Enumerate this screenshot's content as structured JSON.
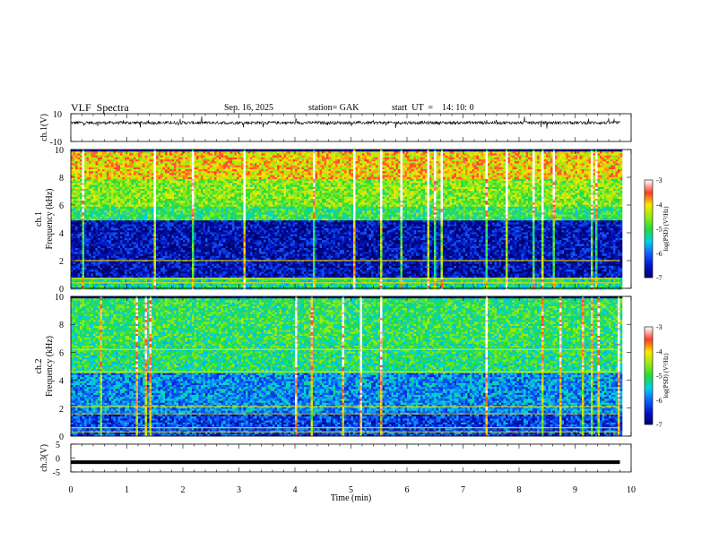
{
  "header": {
    "title": "VLF  Spectra",
    "date": "Sep. 16, 2025",
    "station": "station= GAK",
    "start_ut": "start  UT  =    14: 10: 0"
  },
  "chart_data": [
    {
      "type": "line",
      "panel": "ch1-waveform",
      "ylabel": "ch.1(V)",
      "ylim": [
        -10,
        10
      ],
      "yticks": [
        "10",
        "-10"
      ],
      "x_unit": "min",
      "xlim": [
        0,
        9.8
      ],
      "baseline_v": 3.5,
      "noise_band_v": [
        -3.5,
        3.5
      ],
      "color": "#000000"
    },
    {
      "type": "heatmap",
      "panel": "ch1-spectrogram",
      "ylabel": "ch.1\nFrequency  (kHz)",
      "ylim": [
        0,
        10
      ],
      "yticks": [
        "0",
        "2",
        "4",
        "6",
        "8",
        "10"
      ],
      "colorbar": {
        "label": "log(PSD) (V²/Hz)",
        "range": [
          -7,
          -3
        ],
        "ticks": [
          "-3",
          "-4",
          "-5",
          "-6",
          "-7"
        ]
      },
      "bands": [
        {
          "from_khz": 0.0,
          "to_khz": 0.9,
          "log_psd": -5.2
        },
        {
          "from_khz": 0.9,
          "to_khz": 4.9,
          "log_psd": -6.6
        },
        {
          "from_khz": 4.9,
          "to_khz": 6.0,
          "log_psd": -5.0
        },
        {
          "from_khz": 6.0,
          "to_khz": 8.0,
          "log_psd": -4.6
        },
        {
          "from_khz": 8.0,
          "to_khz": 10.0,
          "log_psd": -4.0
        }
      ],
      "lines_khz": [
        0.4,
        0.7,
        2.0
      ]
    },
    {
      "type": "heatmap",
      "panel": "ch2-spectrogram",
      "ylabel": "ch.2\nFrequency  (kHz)",
      "ylim": [
        0,
        10
      ],
      "yticks": [
        "0",
        "2",
        "4",
        "6",
        "8",
        "10"
      ],
      "colorbar": {
        "label": "log(PSD) (V²/Hz)",
        "range": [
          -7,
          -3
        ],
        "ticks": [
          "-3",
          "-4",
          "-5",
          "-6",
          "-7"
        ]
      },
      "bands": [
        {
          "from_khz": 0.0,
          "to_khz": 1.8,
          "log_psd": -6.2
        },
        {
          "from_khz": 1.8,
          "to_khz": 4.6,
          "log_psd": -5.8
        },
        {
          "from_khz": 4.6,
          "to_khz": 6.8,
          "log_psd": -5.1
        },
        {
          "from_khz": 6.8,
          "to_khz": 10.0,
          "log_psd": -5.0
        }
      ],
      "lines_khz": [
        0.3,
        0.6,
        1.6,
        2.1,
        4.6,
        6.2
      ]
    },
    {
      "type": "line",
      "panel": "ch3-waveform",
      "ylabel": "ch.3(V)",
      "ylim": [
        -5,
        5
      ],
      "yticks": [
        "5",
        "0",
        "-5"
      ],
      "xlabel": "Time  (min)",
      "xlim": [
        0,
        10
      ],
      "xticks": [
        "0",
        "1",
        "2",
        "3",
        "4",
        "5",
        "6",
        "7",
        "8",
        "9",
        "10"
      ],
      "level_v": -1.5,
      "data_end_min": 9.8,
      "color": "#000000"
    }
  ],
  "palette": [
    "#ffffff",
    "#ff2a2a",
    "#ffe600",
    "#20e020",
    "#00e0e0",
    "#1060ff",
    "#000070"
  ]
}
